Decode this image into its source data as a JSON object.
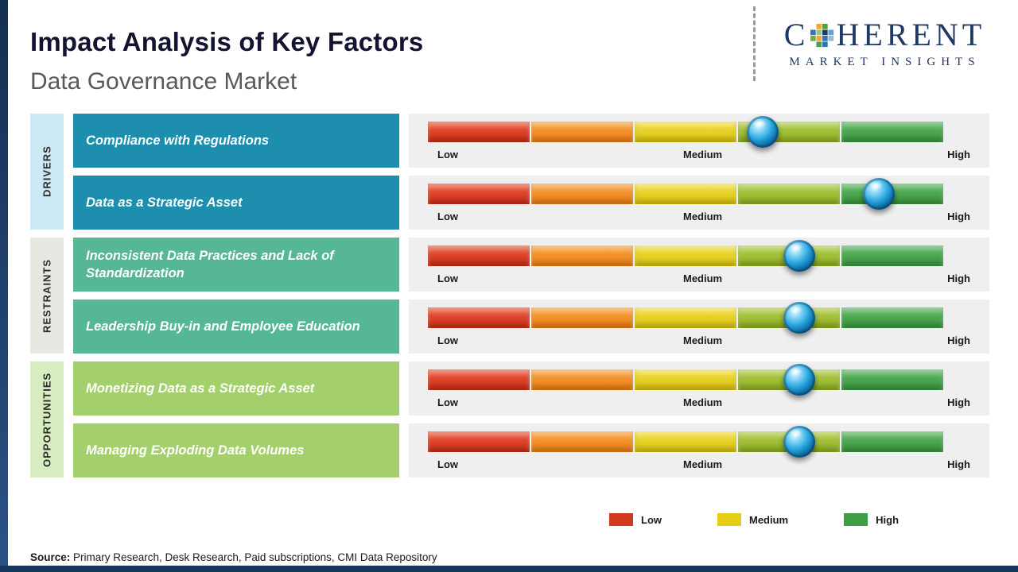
{
  "header": {
    "title": "Impact Analysis of Key Factors",
    "subtitle": "Data Governance Market"
  },
  "logo": {
    "part1": "C",
    "part2": "HERENT",
    "line2": "MARKET INSIGHTS",
    "color": "#1f3864"
  },
  "groups": [
    {
      "label": "DRIVERS",
      "color": "#cde9f6"
    },
    {
      "label": "RESTRAINTS",
      "color": "#e6e9e2"
    },
    {
      "label": "OPPORTUNITIES",
      "color": "#d7edc0"
    }
  ],
  "scale": {
    "low": "Low",
    "medium": "Medium",
    "high": "High"
  },
  "rows": [
    {
      "group": "DRIVERS",
      "label": "Compliance with Regulations",
      "box_color": "#1d8ead",
      "marker_pct": 65
    },
    {
      "group": "DRIVERS",
      "label": "Data as a Strategic Asset",
      "box_color": "#1d8ead",
      "marker_pct": 87.5
    },
    {
      "group": "RESTRAINTS",
      "label": "Inconsistent Data Practices and Lack of Standardization",
      "box_color": "#55b794",
      "marker_pct": 72
    },
    {
      "group": "RESTRAINTS",
      "label": "Leadership Buy-in and Employee Education",
      "box_color": "#55b794",
      "marker_pct": 72
    },
    {
      "group": "OPPORTUNITIES",
      "label": "Monetizing Data as a Strategic Asset",
      "box_color": "#a3d06c",
      "marker_pct": 72
    },
    {
      "group": "OPPORTUNITIES",
      "label": "Managing Exploding Data Volumes",
      "box_color": "#a3d06c",
      "marker_pct": 72
    }
  ],
  "legend": [
    {
      "label": "Low",
      "color": "#d23a1e"
    },
    {
      "label": "Medium",
      "color": "#e7ce16"
    },
    {
      "label": "High",
      "color": "#3d9e43"
    }
  ],
  "source": {
    "label": "Source:",
    "text": " Primary Research, Desk Research, Paid subscriptions, CMI Data Repository"
  },
  "chart_data": {
    "type": "bar",
    "title": "Impact Analysis of Key Factors",
    "subtitle": "Data Governance Market",
    "scale_labels": [
      "Low",
      "Medium",
      "High"
    ],
    "xlim": [
      0,
      100
    ],
    "categories": [
      "Compliance with Regulations",
      "Data as a Strategic Asset",
      "Inconsistent Data Practices and Lack of Standardization",
      "Leadership Buy-in and Employee Education",
      "Monetizing Data as a Strategic Asset",
      "Managing Exploding Data Volumes"
    ],
    "category_groups": [
      "Drivers",
      "Drivers",
      "Restraints",
      "Restraints",
      "Opportunities",
      "Opportunities"
    ],
    "values": [
      65,
      87.5,
      72,
      72,
      72,
      72
    ],
    "value_meaning": "marker position on Low(0) - Medium(50) - High(100) impact scale",
    "legend_position": "bottom-right",
    "grid": false
  }
}
